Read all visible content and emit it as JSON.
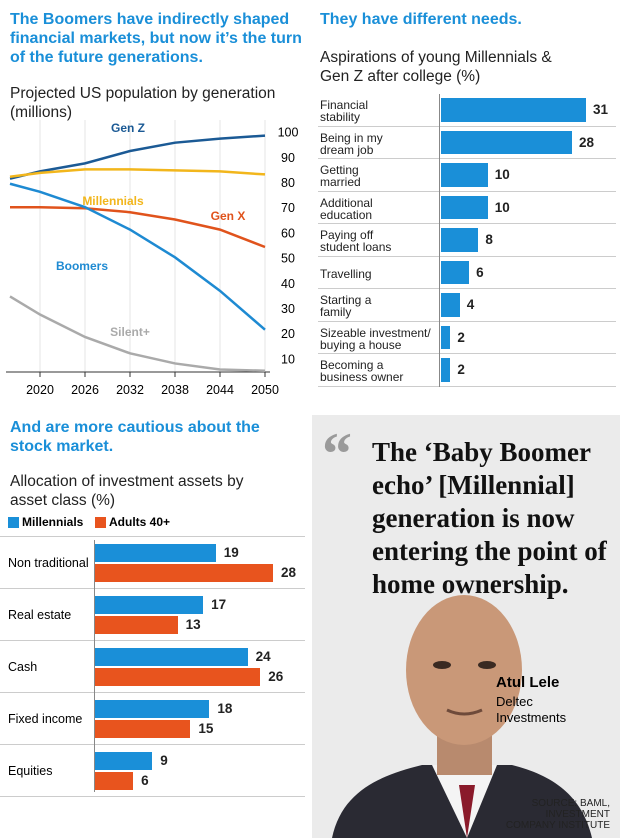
{
  "headings": [
    "The Boomers have indirectly shaped financial markets, but now it’s the turn of the future generations.",
    "They have different needs.",
    "And are more cautious about the stock market."
  ],
  "quote": "The ‘Baby Boomer echo’ [Millennial] generation is now entering the point of home ownership.",
  "person": {
    "name": "Atul Lele",
    "company": "Deltec Investments"
  },
  "source": "SOURCE: BAML,\nINVESTMENT\nCOMPANY INSTITUTE",
  "chart_data": [
    {
      "type": "line",
      "title": "Projected US population by generation (millions)",
      "x": [
        2016,
        2020,
        2026,
        2032,
        2038,
        2044,
        2050
      ],
      "xlim": [
        2016,
        2050
      ],
      "xticks": [
        2020,
        2026,
        2032,
        2038,
        2044,
        2050
      ],
      "ylim": [
        5,
        105
      ],
      "yticks": [
        10,
        20,
        30,
        40,
        50,
        60,
        70,
        80,
        90,
        100
      ],
      "grid": "x",
      "series": [
        {
          "name": "Gen Z",
          "color": "#1b5a95",
          "values": [
            81.7,
            84.6,
            87.8,
            92.7,
            96,
            97.6,
            98.8
          ]
        },
        {
          "name": "Millennials",
          "color": "#f2b61c",
          "values": [
            82.5,
            84,
            85.4,
            85.4,
            85,
            84.6,
            83.4
          ]
        },
        {
          "name": "Gen X",
          "color": "#e0531c",
          "values": [
            70.4,
            70.4,
            70,
            68.4,
            65.5,
            61.5,
            54.6
          ]
        },
        {
          "name": "Boomers",
          "color": "#1e8ad2",
          "values": [
            79.7,
            76.5,
            70.4,
            61.5,
            50.5,
            37.2,
            21.8
          ]
        },
        {
          "name": "Silent+",
          "color": "#aaaaaa",
          "values": [
            35,
            27.8,
            18.9,
            12.4,
            8.4,
            6,
            5.5
          ]
        }
      ]
    },
    {
      "type": "hbar",
      "title": "Aspirations of young Millennials &\nGen Z after college (%)",
      "categories": [
        "Financial\nstability",
        "Being in my\ndream job",
        "Getting\nmarried",
        "Additional\neducation",
        "Paying off\nstudent loans",
        "Travelling",
        "Starting a\nfamily",
        "Sizeable investment/\nbuying a house",
        "Becoming a\nbusiness owner"
      ],
      "values": [
        31,
        28,
        10,
        10,
        8,
        6,
        4,
        2,
        2
      ],
      "color": "#1a8fd8",
      "xlim": [
        0,
        31
      ]
    },
    {
      "type": "grouped-hbar",
      "title": "Allocation of investment assets by\nasset class (%)",
      "categories": [
        "Non traditional",
        "Real estate",
        "Cash",
        "Fixed income",
        "Equities"
      ],
      "xlim": [
        0,
        28
      ],
      "series": [
        {
          "name": "Millennials",
          "color": "#1a8fd8",
          "values": [
            19,
            17,
            24,
            18,
            9
          ]
        },
        {
          "name": "Adults 40+",
          "color": "#e8541e",
          "values": [
            28,
            13,
            26,
            15,
            6
          ]
        }
      ]
    }
  ]
}
